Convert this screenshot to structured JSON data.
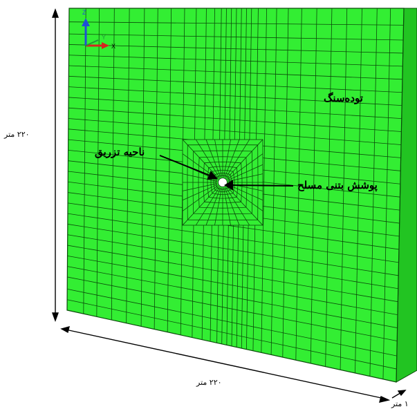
{
  "colors": {
    "mesh_fill": "#33ee33",
    "mesh_line": "#0a4a0a",
    "arrow": "#000000",
    "triad_z": "#1f4fd6",
    "triad_x": "#d6261f",
    "triad_y": "#1f9a3a"
  },
  "triad": {
    "z": "Z",
    "y": "Y",
    "x": "X"
  },
  "labels": {
    "rock_mass": "توده‌سنگ",
    "injection_zone": "ناحیه تزریق",
    "lining": "پوشش بتنی مسلح",
    "height": "۲۲۰ متر",
    "width": "۲۲۰ متر",
    "thickness": "۱ متر"
  }
}
